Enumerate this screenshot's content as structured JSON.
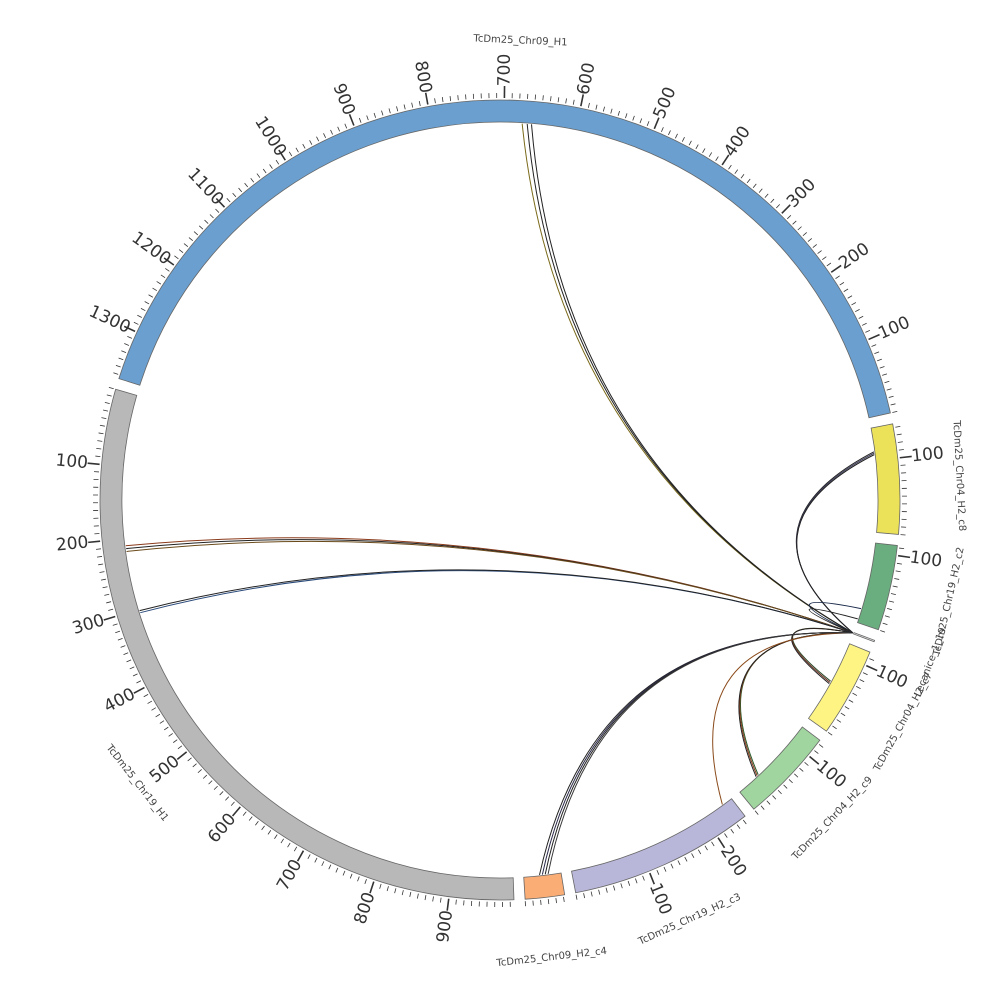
{
  "chart_data": {
    "type": "circos",
    "title": "",
    "segments": [
      {
        "id": "TcDm25_Chr19_H1",
        "label": "TcDm25_Chr19_H1",
        "length": 985,
        "color": "#b8b8b8",
        "major_ticks": [
          100,
          200,
          300,
          400,
          500,
          600,
          700,
          800,
          900
        ]
      },
      {
        "id": "TcDm25_Chr09_H1",
        "label": "TcDm25_Chr09_H1",
        "length": 1365,
        "color": "#6a9fcf",
        "major_ticks": [
          100,
          200,
          300,
          400,
          500,
          600,
          700,
          800,
          900,
          1000,
          1100,
          1200,
          1300
        ]
      },
      {
        "id": "TcDm25_Chr04_H2_c8",
        "label": "TcDm25_Chr04_H2_c8",
        "length": 145,
        "color": "#ece25a",
        "major_ticks": [
          100
        ]
      },
      {
        "id": "TcDm25_Chr19_H2_c2",
        "label": "TcDm25_Chr19_H2_c2",
        "length": 113,
        "color": "#6aad7f",
        "major_ticks": [
          100
        ]
      },
      {
        "id": "Lecanice_1_19",
        "label": "Lecanice_1_19",
        "length": 2,
        "color": "#dddddd",
        "major_ticks": []
      },
      {
        "id": "TcDm25_Chr04_H2_c7",
        "label": "TcDm25_Chr04_H2_c7",
        "length": 118,
        "color": "#fdf483",
        "major_ticks": [
          100
        ]
      },
      {
        "id": "TcDm25_Chr04_H2_c9",
        "label": "TcDm25_Chr04_H2_c9",
        "length": 125,
        "color": "#a0d5a0",
        "major_ticks": [
          100
        ]
      },
      {
        "id": "TcDm25_Chr19_H2_c3",
        "label": "TcDm25_Chr19_H2_c3",
        "length": 245,
        "color": "#b9b7d9",
        "major_ticks": [
          100,
          200
        ]
      },
      {
        "id": "TcDm25_Chr09_H2_c4",
        "label": "TcDm25_Chr09_H2_c4",
        "length": 52,
        "color": "#fbad76",
        "major_ticks": []
      }
    ],
    "links": [
      {
        "source": "Lecanice_1_19",
        "source_pos": 1,
        "target": "TcDm25_Chr09_H1",
        "target_pos": 675,
        "color": "#7a6a1a"
      },
      {
        "source": "Lecanice_1_19",
        "source_pos": 1,
        "target": "TcDm25_Chr09_H1",
        "target_pos": 668,
        "color": "#222222"
      },
      {
        "source": "Lecanice_1_19",
        "source_pos": 1,
        "target": "TcDm25_Chr09_H1",
        "target_pos": 662,
        "color": "#222222"
      },
      {
        "source": "Lecanice_1_19",
        "source_pos": 1,
        "target": "TcDm25_Chr04_H2_c8",
        "target_pos": 112,
        "color": "#222222"
      },
      {
        "source": "Lecanice_1_19",
        "source_pos": 1,
        "target": "TcDm25_Chr04_H2_c8",
        "target_pos": 110,
        "color": "#3a3a5a"
      },
      {
        "source": "Lecanice_1_19",
        "source_pos": 1,
        "target": "TcDm25_Chr04_H2_c8",
        "target_pos": 108,
        "color": "#222222"
      },
      {
        "source": "Lecanice_1_19",
        "source_pos": 1,
        "target": "TcDm25_Chr19_H2_c2",
        "target_pos": 20,
        "color": "#1a2a4a"
      },
      {
        "source": "Lecanice_1_19",
        "source_pos": 1,
        "target": "TcDm25_Chr19_H2_c2",
        "target_pos": 5,
        "color": "#222222"
      },
      {
        "source": "Lecanice_1_19",
        "source_pos": 1,
        "target": "TcDm25_Chr04_H2_c7",
        "target_pos": 60,
        "color": "#2a4a2a"
      },
      {
        "source": "Lecanice_1_19",
        "source_pos": 1,
        "target": "TcDm25_Chr04_H2_c7",
        "target_pos": 58,
        "color": "#6a2a1a"
      },
      {
        "source": "Lecanice_1_19",
        "source_pos": 1,
        "target": "TcDm25_Chr04_H2_c7",
        "target_pos": 56,
        "color": "#222222"
      },
      {
        "source": "Lecanice_1_19",
        "source_pos": 1,
        "target": "TcDm25_Chr04_H2_c9",
        "target_pos": 35,
        "color": "#2a5a2a"
      },
      {
        "source": "Lecanice_1_19",
        "source_pos": 1,
        "target": "TcDm25_Chr04_H2_c9",
        "target_pos": 33,
        "color": "#8a3a1a"
      },
      {
        "source": "Lecanice_1_19",
        "source_pos": 1,
        "target": "TcDm25_Chr04_H2_c9",
        "target_pos": 31,
        "color": "#222222"
      },
      {
        "source": "Lecanice_1_19",
        "source_pos": 1,
        "target": "TcDm25_Chr19_H2_c3",
        "target_pos": 230,
        "color": "#8a4a1a"
      },
      {
        "source": "Lecanice_1_19",
        "source_pos": 1,
        "target": "TcDm25_Chr09_H2_c4",
        "target_pos": 22,
        "color": "#222222"
      },
      {
        "source": "Lecanice_1_19",
        "source_pos": 1,
        "target": "TcDm25_Chr09_H2_c4",
        "target_pos": 26,
        "color": "#2a2a4a"
      },
      {
        "source": "Lecanice_1_19",
        "source_pos": 1,
        "target": "TcDm25_Chr09_H2_c4",
        "target_pos": 30,
        "color": "#222222"
      },
      {
        "source": "Lecanice_1_19",
        "source_pos": 1,
        "target": "TcDm25_Chr09_H2_c4",
        "target_pos": 34,
        "color": "#3a3a3a"
      },
      {
        "source": "Lecanice_1_19",
        "source_pos": 1,
        "target": "TcDm25_Chr19_H1",
        "target_pos": 210,
        "color": "#8a3a1a"
      },
      {
        "source": "Lecanice_1_19",
        "source_pos": 1,
        "target": "TcDm25_Chr19_H1",
        "target_pos": 214,
        "color": "#222222"
      },
      {
        "source": "Lecanice_1_19",
        "source_pos": 1,
        "target": "TcDm25_Chr19_H1",
        "target_pos": 218,
        "color": "#6a4a1a"
      },
      {
        "source": "Lecanice_1_19",
        "source_pos": 1,
        "target": "TcDm25_Chr19_H1",
        "target_pos": 305,
        "color": "#2a4a7a"
      },
      {
        "source": "Lecanice_1_19",
        "source_pos": 1,
        "target": "TcDm25_Chr19_H1",
        "target_pos": 302,
        "color": "#222222"
      }
    ]
  }
}
